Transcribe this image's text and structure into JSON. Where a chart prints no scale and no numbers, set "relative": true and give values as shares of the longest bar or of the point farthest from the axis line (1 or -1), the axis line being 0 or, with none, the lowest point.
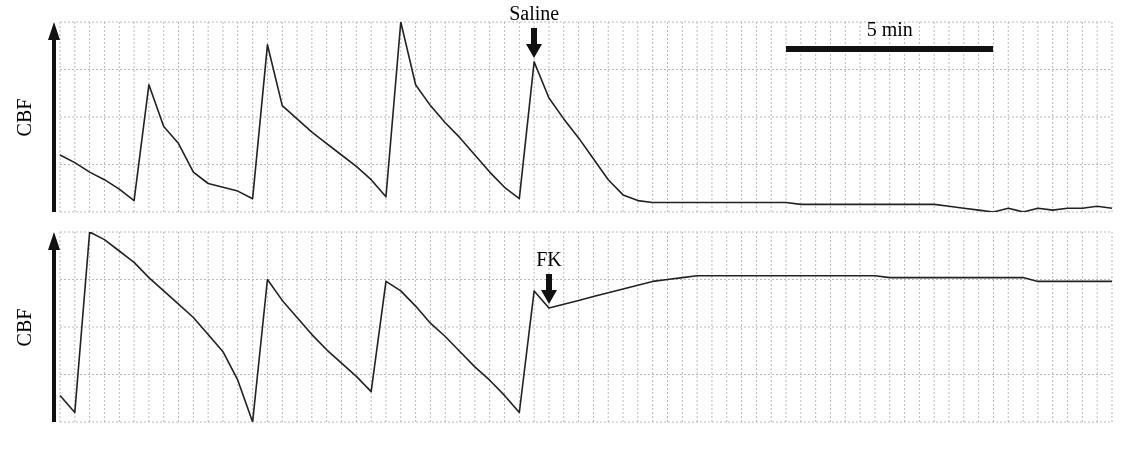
{
  "chart_data": [
    {
      "type": "line",
      "ylabel": "CBF",
      "relative": true,
      "grid": true,
      "annotations": [
        "Saline",
        "5 min"
      ],
      "categories": [
        null,
        null,
        null,
        null,
        null,
        null,
        null,
        null,
        null,
        null,
        null,
        null,
        null,
        null,
        null,
        null,
        null,
        null,
        null,
        null,
        null,
        null,
        null,
        null,
        null,
        null,
        null,
        null,
        null,
        null,
        null,
        null,
        null,
        null,
        null,
        null,
        null,
        null,
        null,
        null,
        null,
        null,
        null,
        null,
        null,
        null,
        null,
        null,
        null,
        null,
        null,
        null,
        null,
        null,
        null,
        null,
        null,
        null,
        null,
        null,
        null,
        null,
        null,
        null,
        null,
        null,
        null,
        null,
        null,
        null,
        null,
        null
      ],
      "series": [
        {
          "color": "#222222",
          "values": [
            0.3,
            0.26,
            0.21,
            0.17,
            0.12,
            0.06,
            0.67,
            0.45,
            0.36,
            0.21,
            0.15,
            0.13,
            0.11,
            0.07,
            0.88,
            0.56,
            0.49,
            0.42,
            0.36,
            0.3,
            0.24,
            0.17,
            0.08,
            1.0,
            0.67,
            0.56,
            0.47,
            0.39,
            0.3,
            0.21,
            0.13,
            0.07,
            0.79,
            0.6,
            0.49,
            0.39,
            0.28,
            0.17,
            0.09,
            0.06,
            0.05,
            0.05,
            0.05,
            0.05,
            0.05,
            0.05,
            0.05,
            0.05,
            0.05,
            0.05,
            0.04,
            0.04,
            0.04,
            0.04,
            0.04,
            0.04,
            0.04,
            0.04,
            0.04,
            0.04,
            0.03,
            0.02,
            0.01,
            0.0,
            0.02,
            0.0,
            0.02,
            0.01,
            0.02,
            0.02,
            0.03,
            0.02
          ]
        }
      ]
    },
    {
      "type": "line",
      "ylabel": "CBF",
      "relative": true,
      "grid": true,
      "annotations": [
        "FK"
      ],
      "categories": [
        null,
        null,
        null,
        null,
        null,
        null,
        null,
        null,
        null,
        null,
        null,
        null,
        null,
        null,
        null,
        null,
        null,
        null,
        null,
        null,
        null,
        null,
        null,
        null,
        null,
        null,
        null,
        null,
        null,
        null,
        null,
        null,
        null,
        null,
        null,
        null,
        null,
        null,
        null,
        null,
        null,
        null,
        null,
        null,
        null,
        null,
        null,
        null,
        null,
        null,
        null,
        null,
        null,
        null,
        null,
        null,
        null,
        null,
        null,
        null,
        null,
        null,
        null,
        null,
        null,
        null,
        null,
        null,
        null,
        null,
        null,
        null
      ],
      "series": [
        {
          "color": "#222222",
          "values": [
            0.14,
            0.05,
            1.0,
            0.96,
            0.9,
            0.84,
            0.76,
            0.69,
            0.62,
            0.55,
            0.46,
            0.37,
            0.22,
            0.0,
            0.75,
            0.64,
            0.55,
            0.46,
            0.38,
            0.31,
            0.24,
            0.16,
            0.74,
            0.69,
            0.61,
            0.52,
            0.45,
            0.37,
            0.29,
            0.22,
            0.14,
            0.05,
            0.69,
            0.6,
            0.62,
            0.64,
            0.66,
            0.68,
            0.7,
            0.72,
            0.74,
            0.75,
            0.76,
            0.77,
            0.77,
            0.77,
            0.77,
            0.77,
            0.77,
            0.77,
            0.77,
            0.77,
            0.77,
            0.77,
            0.77,
            0.77,
            0.76,
            0.76,
            0.76,
            0.76,
            0.76,
            0.76,
            0.76,
            0.76,
            0.76,
            0.76,
            0.74,
            0.74,
            0.74,
            0.74,
            0.74,
            0.74
          ]
        }
      ]
    }
  ]
}
